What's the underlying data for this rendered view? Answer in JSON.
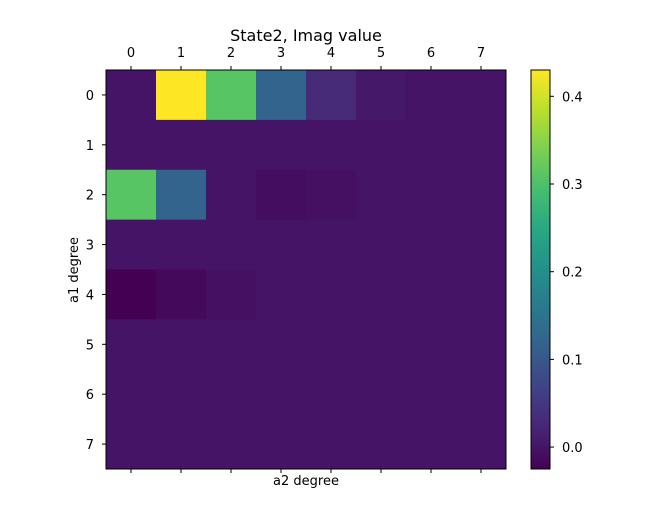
{
  "chart_data": {
    "type": "heatmap",
    "title": "State2, Imag value",
    "xlabel": "a2 degree",
    "ylabel": "a1 degree",
    "x_tick_labels": [
      "0",
      "1",
      "2",
      "3",
      "4",
      "5",
      "6",
      "7"
    ],
    "y_tick_labels": [
      "0",
      "1",
      "2",
      "3",
      "4",
      "5",
      "6",
      "7"
    ],
    "x_axis_position": "top",
    "values": [
      [
        0.0,
        0.43,
        0.31,
        0.12,
        0.03,
        0.005,
        0.0,
        0.0
      ],
      [
        0.0,
        0.0,
        0.0,
        0.0,
        0.0,
        0.0,
        0.0,
        0.0
      ],
      [
        0.31,
        0.12,
        0.0,
        -0.01,
        -0.005,
        0.0,
        0.0,
        0.0
      ],
      [
        0.0,
        0.0,
        0.0,
        0.0,
        0.0,
        0.0,
        0.0,
        0.0
      ],
      [
        -0.025,
        -0.015,
        -0.005,
        0.0,
        0.0,
        0.0,
        0.0,
        0.0
      ],
      [
        0.0,
        0.0,
        0.0,
        0.0,
        0.0,
        0.0,
        0.0,
        0.0
      ],
      [
        0.0,
        0.0,
        0.0,
        0.0,
        0.0,
        0.0,
        0.0,
        0.0
      ],
      [
        0.0,
        0.0,
        0.0,
        0.0,
        0.0,
        0.0,
        0.0,
        0.0
      ]
    ],
    "colormap": "viridis",
    "color_range": [
      -0.025,
      0.43
    ],
    "colorbar_ticks": [
      0.0,
      0.1,
      0.2,
      0.3,
      0.4
    ],
    "colorbar_tick_labels": [
      "0.0",
      "0.1",
      "0.2",
      "0.3",
      "0.4"
    ],
    "grid": false
  }
}
